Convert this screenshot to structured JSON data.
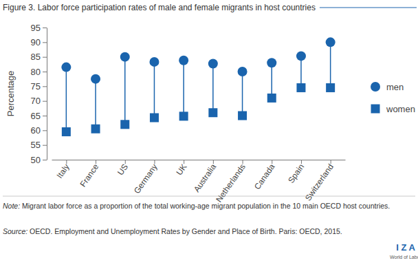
{
  "chart_data": {
    "type": "dumbbell",
    "title": "Figure 3. Labor force participation rates of male and female migrants in host countries",
    "y_label": "Percentage",
    "categories": [
      "Italy",
      "France",
      "US",
      "Germany",
      "UK",
      "Australia",
      "Netherlands",
      "Canada",
      "Spain",
      "Switzerland"
    ],
    "series": [
      {
        "name": "men",
        "color": "#1a64ad",
        "marker": "circle",
        "values": [
          81.5,
          77.5,
          85,
          83.3,
          83.8,
          82.7,
          80,
          83,
          85.3,
          90
        ]
      },
      {
        "name": "women",
        "color": "#1a64ad",
        "marker": "square",
        "values": [
          59.5,
          60.5,
          62,
          64.3,
          64.8,
          66,
          65,
          71,
          74.5,
          74.5
        ]
      }
    ],
    "ylim": [
      50,
      95
    ],
    "yticks": [
      50,
      55,
      60,
      65,
      70,
      75,
      80,
      85,
      90,
      95
    ],
    "grid": false,
    "legend": "right",
    "note": "Note: Migrant labor force as a proportion of the total working-age migrant population in the 10 main OECD host countries.",
    "source": "Source: OECD. Employment and Unemployment Rates by Gender and Place of Birth. Paris: OECD, 2015.",
    "annotations": [
      "I Z A",
      "World of Labor"
    ]
  }
}
